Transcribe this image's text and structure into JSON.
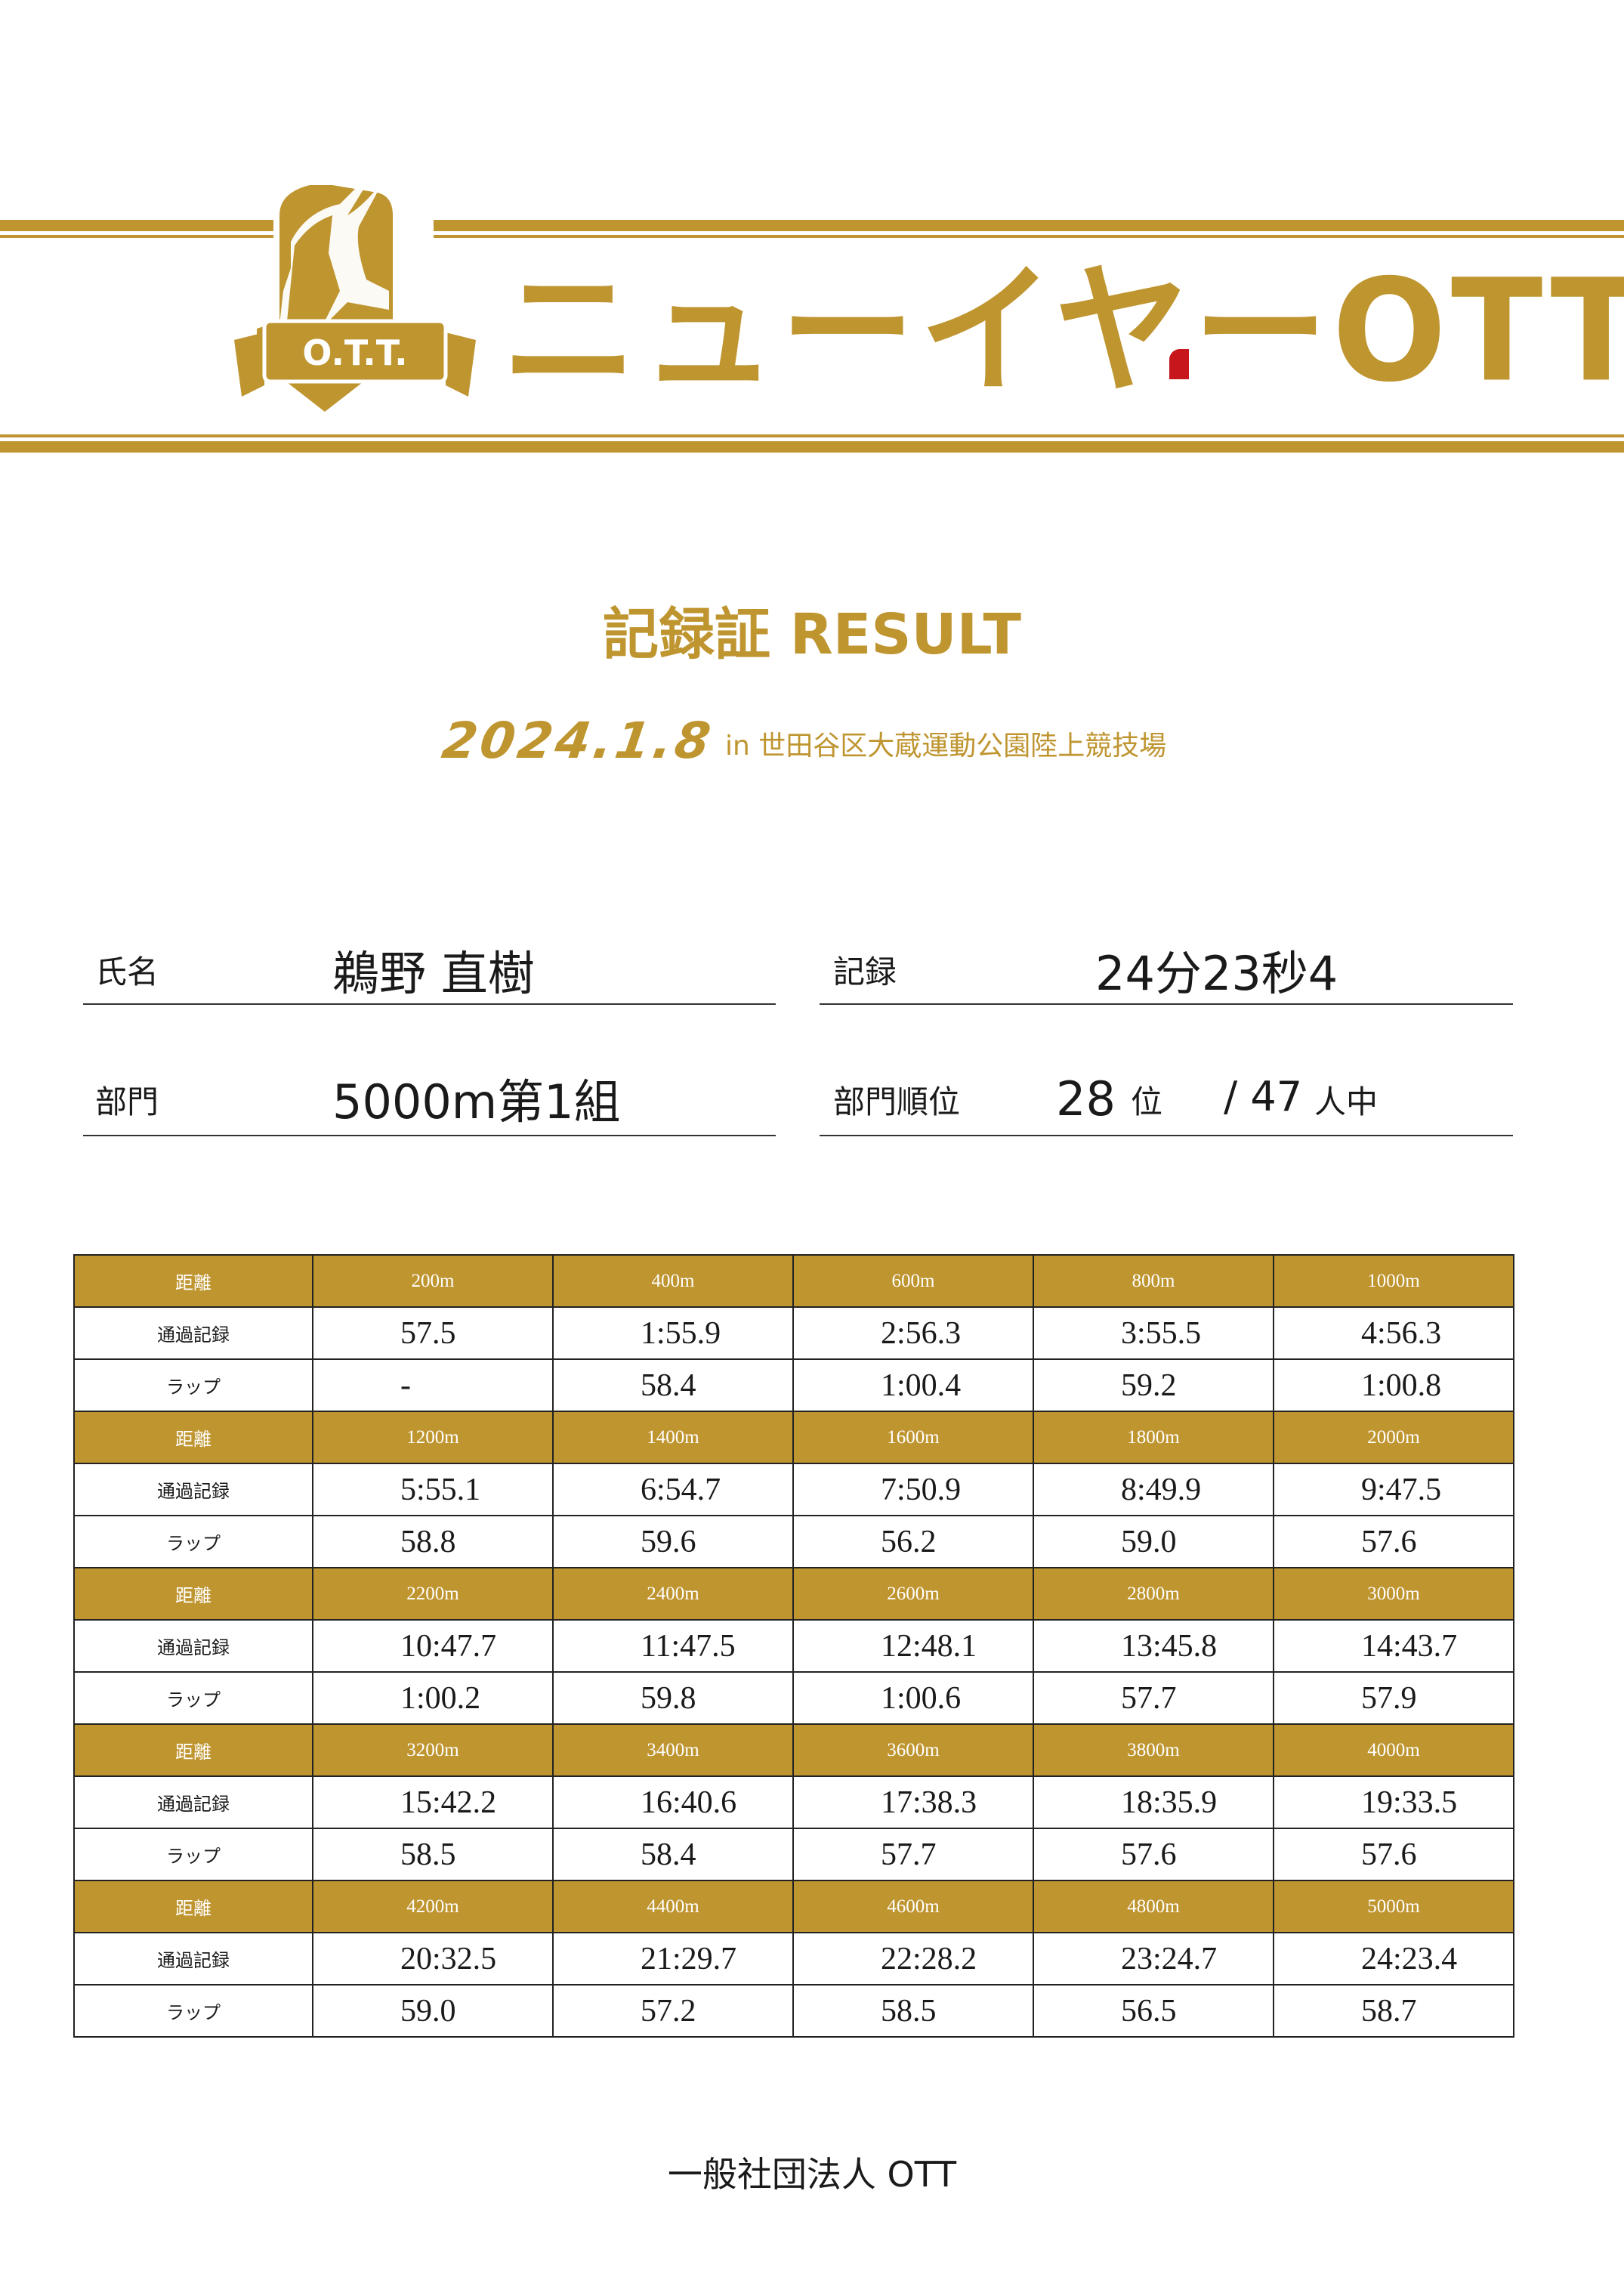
{
  "brand": {
    "logo_text": "O.T.T.",
    "title": "ニューイヤーOTT",
    "gold": "#bf9530",
    "accent_red": "#c8161d"
  },
  "heading": "記録証 RESULT",
  "event": {
    "date": "2024.1.8",
    "venue": "in 世田谷区大蔵運動公園陸上競技場"
  },
  "athlete": {
    "name_label": "氏名",
    "name": "鵜野 直樹",
    "record_label": "記録",
    "record": "24分23秒4",
    "division_label": "部門",
    "division": "5000m第1組",
    "rank_label": "部門順位",
    "rank": "28",
    "rank_unit": "位",
    "total": "/ 47",
    "total_unit": "人中"
  },
  "splits": {
    "header_label": "距離",
    "record_label": "通過記録",
    "lap_label": "ラップ",
    "blocks": [
      {
        "distances": [
          "200m",
          "400m",
          "600m",
          "800m",
          "1000m"
        ],
        "records": [
          "57.5",
          "1:55.9",
          "2:56.3",
          "3:55.5",
          "4:56.3"
        ],
        "laps": [
          "-",
          "58.4",
          "1:00.4",
          "59.2",
          "1:00.8"
        ]
      },
      {
        "distances": [
          "1200m",
          "1400m",
          "1600m",
          "1800m",
          "2000m"
        ],
        "records": [
          "5:55.1",
          "6:54.7",
          "7:50.9",
          "8:49.9",
          "9:47.5"
        ],
        "laps": [
          "58.8",
          "59.6",
          "56.2",
          "59.0",
          "57.6"
        ]
      },
      {
        "distances": [
          "2200m",
          "2400m",
          "2600m",
          "2800m",
          "3000m"
        ],
        "records": [
          "10:47.7",
          "11:47.5",
          "12:48.1",
          "13:45.8",
          "14:43.7"
        ],
        "laps": [
          "1:00.2",
          "59.8",
          "1:00.6",
          "57.7",
          "57.9"
        ]
      },
      {
        "distances": [
          "3200m",
          "3400m",
          "3600m",
          "3800m",
          "4000m"
        ],
        "records": [
          "15:42.2",
          "16:40.6",
          "17:38.3",
          "18:35.9",
          "19:33.5"
        ],
        "laps": [
          "58.5",
          "58.4",
          "57.7",
          "57.6",
          "57.6"
        ]
      },
      {
        "distances": [
          "4200m",
          "4400m",
          "4600m",
          "4800m",
          "5000m"
        ],
        "records": [
          "20:32.5",
          "21:29.7",
          "22:28.2",
          "23:24.7",
          "24:23.4"
        ],
        "laps": [
          "59.0",
          "57.2",
          "58.5",
          "56.5",
          "58.7"
        ]
      }
    ]
  },
  "footer": "一般社団法人 OTT"
}
